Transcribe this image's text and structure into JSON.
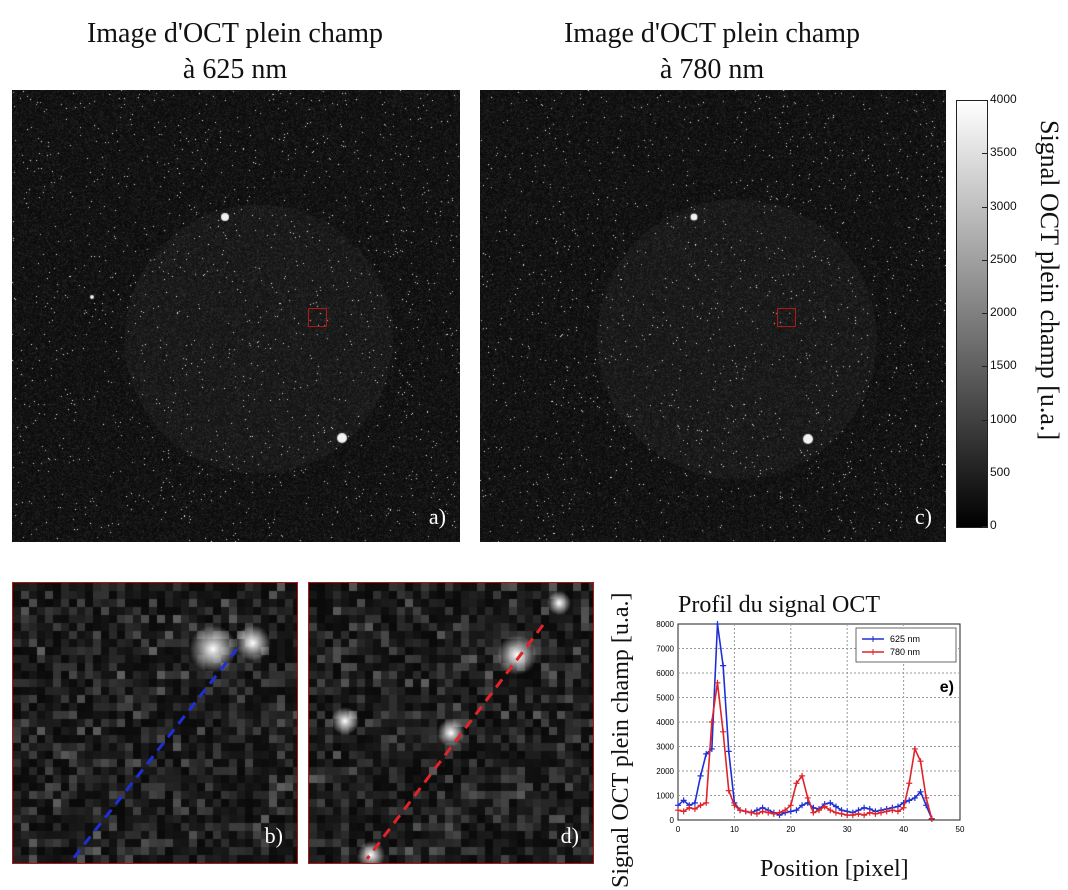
{
  "figure": {
    "title_left": [
      "Image d'OCT plein champ",
      "à 625 nm"
    ],
    "title_right": [
      "Image d'OCT plein champ",
      "à 780 nm"
    ],
    "panel_a_label": "a)",
    "panel_b_label": "b)",
    "panel_c_label": "c)",
    "panel_d_label": "d)",
    "panel_e_label": "e)",
    "colorbar": {
      "label": "Signal OCT plein champ [u.a.]",
      "ticks": [
        "4000",
        "3500",
        "3000",
        "2500",
        "2000",
        "1500",
        "1000",
        "500",
        "0"
      ]
    },
    "colors": {
      "roi_box": "#b01818",
      "line_625": "#1f2fd6",
      "line_780": "#e0242a"
    }
  },
  "chart_data": {
    "type": "line",
    "title": "Profil du signal OCT",
    "xlabel": "Position [pixel]",
    "ylabel": "Signal OCT plein champ [u.a.]",
    "xlim": [
      0,
      50
    ],
    "ylim": [
      0,
      8000
    ],
    "xticks": [
      "0",
      "10",
      "20",
      "30",
      "40",
      "50"
    ],
    "yticks": [
      "0",
      "1000",
      "2000",
      "3000",
      "4000",
      "5000",
      "6000",
      "7000",
      "8000"
    ],
    "grid": true,
    "legend_position": "top-right",
    "series": [
      {
        "name": "625 nm",
        "color": "#1f2fd6",
        "x": [
          0,
          1,
          2,
          3,
          4,
          5,
          6,
          7,
          8,
          9,
          10,
          11,
          12,
          13,
          14,
          15,
          16,
          17,
          18,
          19,
          20,
          21,
          22,
          23,
          24,
          25,
          26,
          27,
          28,
          29,
          30,
          31,
          32,
          33,
          34,
          35,
          36,
          37,
          38,
          39,
          40,
          41,
          42,
          43,
          44,
          45
        ],
        "y": [
          600,
          800,
          600,
          700,
          1800,
          2700,
          2900,
          8000,
          6300,
          2800,
          700,
          400,
          350,
          300,
          400,
          500,
          400,
          300,
          200,
          300,
          350,
          400,
          600,
          700,
          500,
          450,
          650,
          700,
          550,
          400,
          350,
          300,
          400,
          500,
          450,
          350,
          400,
          450,
          500,
          550,
          700,
          800,
          900,
          1150,
          600,
          50
        ]
      },
      {
        "name": "780 nm",
        "color": "#e0242a",
        "x": [
          0,
          1,
          2,
          3,
          4,
          5,
          6,
          7,
          8,
          9,
          10,
          11,
          12,
          13,
          14,
          15,
          16,
          17,
          18,
          19,
          20,
          21,
          22,
          23,
          24,
          25,
          26,
          27,
          28,
          29,
          30,
          31,
          32,
          33,
          34,
          35,
          36,
          37,
          38,
          39,
          40,
          41,
          42,
          43,
          44,
          45
        ],
        "y": [
          400,
          350,
          500,
          450,
          600,
          700,
          4000,
          5600,
          3600,
          1200,
          600,
          400,
          350,
          300,
          250,
          350,
          300,
          250,
          300,
          400,
          600,
          1500,
          1800,
          900,
          300,
          400,
          550,
          400,
          300,
          250,
          200,
          200,
          250,
          200,
          300,
          250,
          300,
          350,
          400,
          350,
          500,
          1500,
          2900,
          2400,
          900,
          50
        ]
      }
    ]
  }
}
